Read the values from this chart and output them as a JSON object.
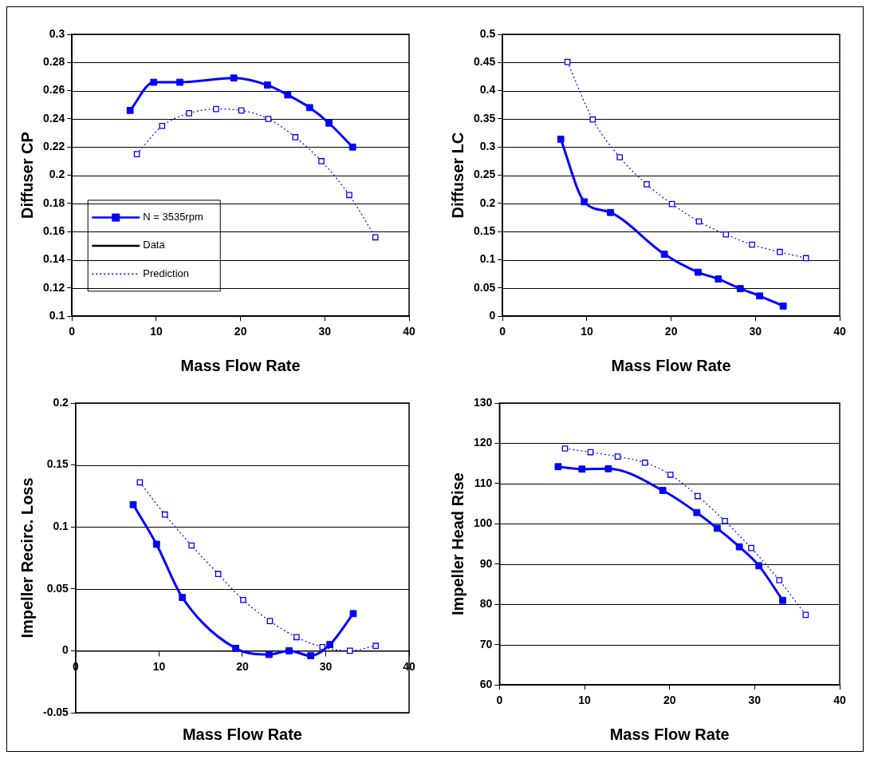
{
  "chart_data": [
    {
      "type": "line",
      "xlabel": "Mass Flow Rate",
      "ylabel": "Diffuser CP",
      "xlim": [
        0,
        40
      ],
      "xticks": [
        0,
        10,
        20,
        30,
        40
      ],
      "ylim": [
        0.1,
        0.3
      ],
      "yticks": [
        0.1,
        0.12,
        0.14,
        0.16,
        0.18,
        0.2,
        0.22,
        0.24,
        0.26,
        0.28,
        0.3
      ],
      "grid": "y",
      "legend": "bottom left",
      "annotations": [
        "Data"
      ],
      "series": [
        {
          "name": "N = 3535rpm",
          "color": "#0000ff",
          "marker": "square",
          "line_style": "solid",
          "x": [
            6.9,
            9.7,
            12.8,
            19.2,
            23.2,
            25.6,
            28.2,
            30.5,
            33.3
          ],
          "values": [
            0.246,
            0.266,
            0.266,
            0.269,
            0.264,
            0.257,
            0.248,
            0.237,
            0.22
          ]
        },
        {
          "name": "Prediction",
          "color": "#0000ff",
          "marker": "square",
          "line_style": "dotted",
          "x": [
            7.7,
            10.7,
            13.9,
            17.1,
            20.1,
            23.3,
            26.5,
            29.6,
            32.9,
            36.0
          ],
          "values": [
            0.215,
            0.235,
            0.244,
            0.247,
            0.246,
            0.24,
            0.227,
            0.21,
            0.186,
            0.156
          ]
        }
      ]
    },
    {
      "type": "line",
      "xlabel": "Mass Flow Rate",
      "ylabel": "Diffuser LC",
      "xlim": [
        0,
        40
      ],
      "xticks": [
        0,
        10,
        20,
        30,
        40
      ],
      "ylim": [
        0,
        0.5
      ],
      "yticks": [
        0,
        0.05,
        0.1,
        0.15,
        0.2,
        0.25,
        0.3,
        0.35,
        0.4,
        0.45,
        0.5
      ],
      "grid": "y",
      "series": [
        {
          "color": "#0000ff",
          "marker": "square",
          "line_style": "solid",
          "x": [
            6.9,
            9.7,
            12.8,
            19.2,
            23.2,
            25.6,
            28.2,
            30.5,
            33.3
          ],
          "values": [
            0.314,
            0.203,
            0.184,
            0.11,
            0.078,
            0.066,
            0.049,
            0.036,
            0.018
          ]
        },
        {
          "color": "#0000ff",
          "marker": "square",
          "line_style": "dotted",
          "x": [
            7.7,
            10.7,
            13.9,
            17.1,
            20.1,
            23.3,
            26.5,
            29.6,
            32.9,
            36.0
          ],
          "values": [
            0.451,
            0.349,
            0.282,
            0.234,
            0.199,
            0.168,
            0.145,
            0.127,
            0.114,
            0.103
          ]
        }
      ]
    },
    {
      "type": "line",
      "xlabel": "Mass Flow Rate",
      "ylabel": "Impeller Recirc. Loss",
      "xlim": [
        0,
        40
      ],
      "xticks": [
        0,
        10,
        20,
        30,
        40
      ],
      "ylim": [
        -0.05,
        0.2
      ],
      "yticks": [
        -0.05,
        0,
        0.05,
        0.1,
        0.15,
        0.2
      ],
      "grid": "y",
      "series": [
        {
          "color": "#0000ff",
          "marker": "square",
          "line_style": "solid",
          "x": [
            6.9,
            9.7,
            12.8,
            19.2,
            23.2,
            25.6,
            28.2,
            30.5,
            33.3
          ],
          "values": [
            0.118,
            0.086,
            0.043,
            0.002,
            -0.003,
            0.0,
            -0.004,
            0.005,
            0.03
          ]
        },
        {
          "color": "#0000ff",
          "marker": "square",
          "line_style": "dotted",
          "x": [
            7.7,
            10.7,
            13.9,
            17.1,
            20.1,
            23.3,
            26.5,
            29.6,
            32.9,
            36.0
          ],
          "values": [
            0.136,
            0.11,
            0.085,
            0.062,
            0.041,
            0.024,
            0.011,
            0.003,
            0.0,
            0.004
          ]
        }
      ]
    },
    {
      "type": "line",
      "xlabel": "Mass Flow Rate",
      "ylabel": "Impeller Head Rise",
      "xlim": [
        0,
        40
      ],
      "xticks": [
        0,
        10,
        20,
        30,
        40
      ],
      "ylim": [
        60,
        130
      ],
      "yticks": [
        60,
        70,
        80,
        90,
        100,
        110,
        120,
        130
      ],
      "grid": "y",
      "series": [
        {
          "color": "#0000ff",
          "marker": "square",
          "line_style": "solid",
          "x": [
            6.9,
            9.7,
            12.8,
            19.2,
            23.2,
            25.6,
            28.2,
            30.5,
            33.3
          ],
          "values": [
            114.2,
            113.6,
            113.7,
            108.3,
            102.8,
            98.9,
            94.3,
            89.6,
            81.0
          ]
        },
        {
          "color": "#0000ff",
          "marker": "square",
          "line_style": "dotted",
          "x": [
            7.7,
            10.7,
            13.9,
            17.1,
            20.1,
            23.3,
            26.5,
            29.6,
            32.9,
            36.0
          ],
          "values": [
            118.7,
            117.8,
            116.7,
            115.2,
            112.2,
            106.9,
            100.7,
            94.0,
            86.0,
            77.4
          ]
        }
      ]
    }
  ]
}
